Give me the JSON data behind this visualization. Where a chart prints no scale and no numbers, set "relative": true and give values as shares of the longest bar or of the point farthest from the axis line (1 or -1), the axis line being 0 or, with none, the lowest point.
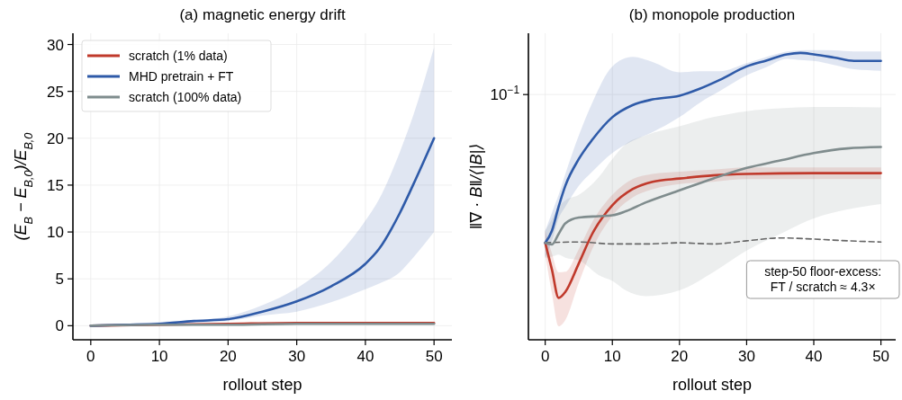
{
  "chart_data": [
    {
      "type": "line",
      "title": "(a) magnetic energy drift",
      "xlabel": "rollout step",
      "ylabel": "(E$_{B}$ − E$_{B,0}$)/E$_{B,0}$",
      "xlim": [
        -2.6,
        52.6
      ],
      "xticks": [
        0,
        10,
        20,
        30,
        40,
        50
      ],
      "ylim": [
        -1.5,
        31.2
      ],
      "yticks": [
        0,
        5,
        10,
        15,
        20,
        25,
        30
      ],
      "grid": true,
      "legend": "top left",
      "series": [
        {
          "name": "scratch (1% data)",
          "color": "#c0392b",
          "x": [
            0,
            10,
            20,
            30,
            40,
            50
          ],
          "values": [
            0,
            0.1,
            0.2,
            0.3,
            0.3,
            0.3
          ]
        },
        {
          "name": "MHD pretrain + FT",
          "color": "#2e5aa8",
          "x": [
            0,
            5,
            10,
            15,
            20,
            25,
            30,
            35,
            40,
            42,
            45,
            47,
            50
          ],
          "values": [
            0,
            0.1,
            0.2,
            0.5,
            0.7,
            1.5,
            2.6,
            4.2,
            6.6,
            8.2,
            12.0,
            15.1,
            20.0
          ],
          "lower": [
            -0.1,
            0,
            0.1,
            0.3,
            0.5,
            1.1,
            1.5,
            2.5,
            3.9,
            4.5,
            5.7,
            7.3,
            10.0
          ],
          "upper": [
            0.1,
            0.2,
            0.4,
            0.6,
            1.0,
            2.2,
            4.0,
            6.8,
            11.2,
            13.5,
            18.5,
            22.5,
            29.7
          ]
        },
        {
          "name": "scratch (100% data)",
          "color": "#7f8c8d",
          "x": [
            0,
            10,
            20,
            30,
            40,
            50
          ],
          "values": [
            0,
            0.1,
            0.1,
            0.2,
            0.2,
            0.2
          ]
        }
      ]
    },
    {
      "type": "line",
      "title": "(b) monopole production",
      "xlabel": "rollout step",
      "ylabel": "‖∇ · B‖/⟨|B|⟩",
      "relative": true,
      "xlim": [
        -2.5,
        52.2
      ],
      "xticks": [
        0,
        10,
        20,
        30,
        40,
        50
      ],
      "grid": true,
      "legend": false,
      "annotations": [
        "10$^{−1}$",
        "step-50 floor-excess:\nFT / scratch ≈ 4.3×"
      ],
      "series": [
        {
          "color": "#666666",
          "line_style": "dashed",
          "x": [
            0,
            5,
            10,
            15,
            20,
            25,
            30,
            35,
            40,
            45,
            50
          ],
          "values": [
            0.338,
            0.341,
            0.334,
            0.334,
            0.338,
            0.334,
            0.345,
            0.355,
            0.351,
            0.345,
            0.341
          ]
        },
        {
          "color": "#c0392b",
          "x": [
            0,
            1,
            2,
            3,
            5,
            7,
            10,
            13,
            16,
            20,
            25,
            30,
            40,
            50
          ],
          "values": [
            0.338,
            0.245,
            0.146,
            0.167,
            0.266,
            0.369,
            0.469,
            0.525,
            0.551,
            0.562,
            0.573,
            0.578,
            0.581,
            0.581
          ],
          "lower": [
            0.297,
            0.161,
            0.047,
            0.069,
            0.199,
            0.316,
            0.432,
            0.496,
            0.525,
            0.543,
            0.551,
            0.56,
            0.56,
            0.56
          ],
          "upper": [
            0.38,
            0.301,
            0.235,
            0.237,
            0.316,
            0.41,
            0.505,
            0.56,
            0.578,
            0.586,
            0.593,
            0.601,
            0.601,
            0.601
          ]
        },
        {
          "color": "#2e5aa8",
          "x": [
            0,
            1,
            2,
            3,
            5,
            7,
            10,
            13,
            16,
            20,
            23,
            26,
            30,
            33,
            36,
            38,
            40,
            43,
            46,
            50
          ],
          "values": [
            0.338,
            0.38,
            0.464,
            0.537,
            0.63,
            0.697,
            0.776,
            0.818,
            0.838,
            0.851,
            0.875,
            0.906,
            0.953,
            0.974,
            0.995,
            1,
            0.995,
            0.984,
            0.972,
            0.972
          ],
          "lower": [
            0.286,
            0.345,
            0.423,
            0.464,
            0.537,
            0.586,
            0.651,
            0.693,
            0.724,
            0.776,
            0.826,
            0.867,
            0.922,
            0.951,
            0.979,
            0.975,
            0.972,
            0.958,
            0.943,
            0.938
          ],
          "upper": [
            0.38,
            0.443,
            0.505,
            0.578,
            0.712,
            0.826,
            0.953,
            0.986,
            0.968,
            0.932,
            0.936,
            0.936,
            0.964,
            0.986,
            1.005,
            1.009,
            1.01,
            1.009,
            1.005,
            1.005
          ]
        },
        {
          "color": "#7f8c8d",
          "x": [
            0,
            1,
            2,
            3,
            5,
            8,
            10,
            12,
            15,
            20,
            25,
            30,
            35,
            40,
            45,
            50
          ],
          "values": [
            0.338,
            0.332,
            0.369,
            0.406,
            0.426,
            0.431,
            0.434,
            0.448,
            0.479,
            0.521,
            0.562,
            0.599,
            0.625,
            0.651,
            0.667,
            0.672
          ],
          "lower": [
            0.286,
            0.29,
            0.297,
            0.286,
            0.277,
            0.225,
            0.205,
            0.172,
            0.152,
            0.172,
            0.235,
            0.311,
            0.369,
            0.423,
            0.454,
            0.473
          ],
          "upper": [
            0.38,
            0.421,
            0.464,
            0.486,
            0.505,
            0.568,
            0.63,
            0.682,
            0.713,
            0.744,
            0.776,
            0.797,
            0.807,
            0.812,
            0.812,
            0.81
          ]
        }
      ]
    }
  ]
}
